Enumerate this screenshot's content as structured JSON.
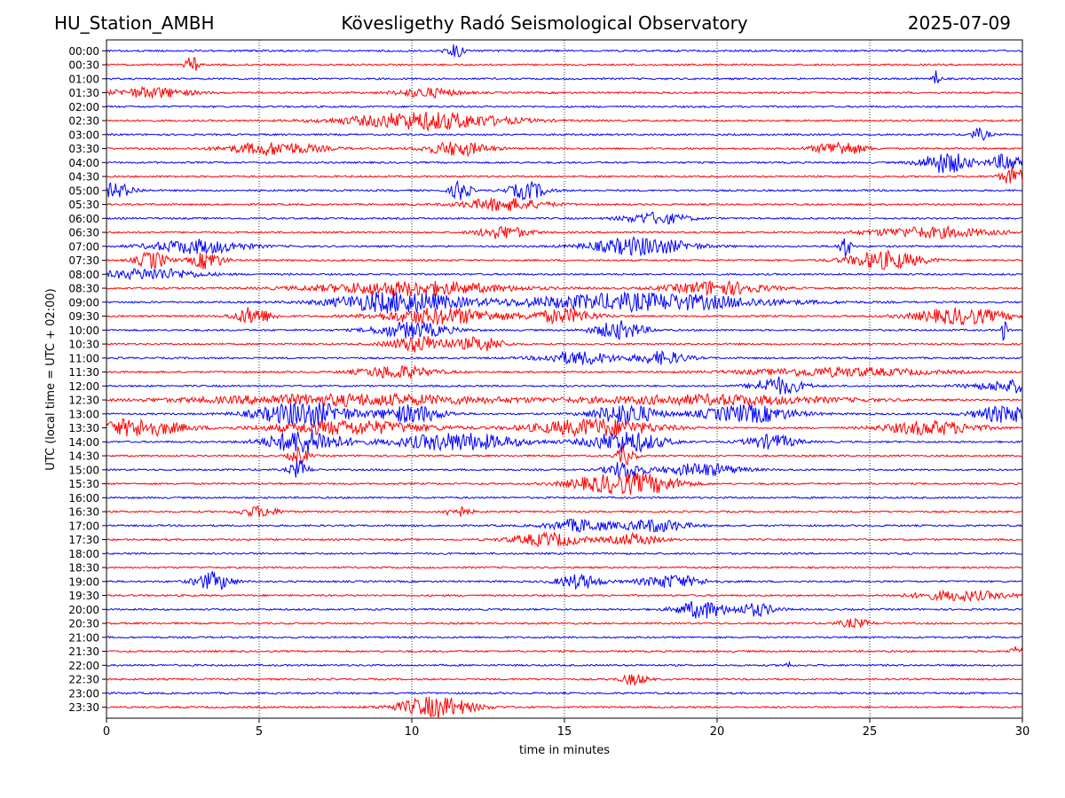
{
  "header": {
    "station": "HU_Station_AMBH",
    "title": "Kövesligethy Radó Seismological Observatory",
    "date": "2025-07-09"
  },
  "chart_data": {
    "type": "line",
    "title": "Kövesligethy Radó Seismological Observatory",
    "xlabel": "time in minutes",
    "ylabel": "UTC (local time = UTC + 02:00)",
    "xlim": [
      0,
      30
    ],
    "xticks": [
      0,
      5,
      10,
      15,
      20,
      25,
      30
    ],
    "grid": "vertical dotted",
    "colors": [
      "#0000ff",
      "#ff0000"
    ],
    "rows": [
      {
        "label": "00:00",
        "bursts": [
          [
            11.4,
            0.3,
            2.0
          ]
        ]
      },
      {
        "label": "00:30",
        "bursts": [
          [
            2.8,
            0.2,
            2.5
          ]
        ]
      },
      {
        "label": "01:00",
        "bursts": [
          [
            27.2,
            0.1,
            3.0
          ]
        ]
      },
      {
        "label": "01:30",
        "bursts": [
          [
            1.5,
            1.2,
            1.5
          ],
          [
            10.5,
            1.0,
            1.3
          ]
        ]
      },
      {
        "label": "02:00",
        "bursts": []
      },
      {
        "label": "02:30",
        "bursts": [
          [
            10.5,
            2.5,
            2.5
          ]
        ]
      },
      {
        "label": "03:00",
        "bursts": [
          [
            28.6,
            0.3,
            1.6
          ]
        ]
      },
      {
        "label": "03:30",
        "bursts": [
          [
            5.5,
            1.5,
            1.8
          ],
          [
            11.5,
            1.0,
            2.0
          ],
          [
            24,
            0.8,
            2.0
          ]
        ]
      },
      {
        "label": "04:00",
        "bursts": [
          [
            27.5,
            0.8,
            3.0
          ],
          [
            29.5,
            0.5,
            2.5
          ]
        ]
      },
      {
        "label": "04:30",
        "bursts": [
          [
            29.7,
            0.4,
            2.5
          ]
        ]
      },
      {
        "label": "05:00",
        "bursts": [
          [
            0.3,
            0.6,
            2.0
          ],
          [
            11.6,
            0.3,
            3.0
          ],
          [
            13.8,
            0.6,
            2.5
          ]
        ]
      },
      {
        "label": "05:30",
        "bursts": [
          [
            13,
            1.3,
            1.8
          ]
        ]
      },
      {
        "label": "06:00",
        "bursts": [
          [
            18,
            1.0,
            1.6
          ]
        ]
      },
      {
        "label": "06:30",
        "bursts": [
          [
            13,
            0.8,
            1.8
          ],
          [
            27,
            2.0,
            1.5
          ]
        ]
      },
      {
        "label": "07:00",
        "bursts": [
          [
            3,
            1.5,
            2.0
          ],
          [
            17.5,
            1.6,
            2.5
          ],
          [
            24.2,
            0.2,
            3.0
          ]
        ]
      },
      {
        "label": "07:30",
        "bursts": [
          [
            1.5,
            0.5,
            2.5
          ],
          [
            3.3,
            0.5,
            2.5
          ],
          [
            25.5,
            1.2,
            2.5
          ]
        ]
      },
      {
        "label": "08:00",
        "bursts": [
          [
            1.5,
            1.5,
            1.6
          ]
        ]
      },
      {
        "label": "08:30",
        "bursts": [
          [
            10,
            3.0,
            2.0
          ],
          [
            20,
            1.5,
            2.0
          ]
        ]
      },
      {
        "label": "09:00",
        "bursts": [
          [
            9.5,
            2.0,
            3.0
          ],
          [
            17.5,
            4.0,
            2.5
          ]
        ]
      },
      {
        "label": "09:30",
        "bursts": [
          [
            4.8,
            0.6,
            2.5
          ],
          [
            11,
            2.0,
            2.3
          ],
          [
            15,
            1.0,
            2.0
          ],
          [
            28,
            1.5,
            2.3
          ]
        ]
      },
      {
        "label": "10:00",
        "bursts": [
          [
            10,
            1.2,
            2.3
          ],
          [
            16.8,
            0.8,
            2.5
          ],
          [
            29.4,
            0.1,
            3.0
          ]
        ]
      },
      {
        "label": "10:30",
        "bursts": [
          [
            10.3,
            1.0,
            2.3
          ],
          [
            12.3,
            0.7,
            2.0
          ]
        ]
      },
      {
        "label": "11:00",
        "bursts": [
          [
            15.5,
            1.2,
            1.8
          ],
          [
            18.2,
            0.8,
            1.8
          ]
        ]
      },
      {
        "label": "11:30",
        "bursts": [
          [
            9.5,
            1.2,
            1.8
          ],
          [
            24,
            3.0,
            1.2
          ]
        ]
      },
      {
        "label": "12:00",
        "bursts": [
          [
            22,
            0.8,
            2.5
          ],
          [
            30,
            1.5,
            1.8
          ]
        ]
      },
      {
        "label": "12:30",
        "bursts": [
          [
            8,
            5.0,
            1.6
          ],
          [
            20,
            4.0,
            1.4
          ]
        ]
      },
      {
        "label": "13:00",
        "bursts": [
          [
            6.5,
            1.5,
            3.5
          ],
          [
            10,
            1.0,
            2.5
          ],
          [
            17,
            1.0,
            3.0
          ],
          [
            21,
            1.5,
            2.5
          ],
          [
            29.5,
            1.0,
            2.5
          ]
        ]
      },
      {
        "label": "13:30",
        "bursts": [
          [
            1,
            1.5,
            2.5
          ],
          [
            8,
            2.5,
            2.0
          ],
          [
            16,
            2.0,
            2.5
          ],
          [
            27,
            1.5,
            2.0
          ]
        ]
      },
      {
        "label": "14:00",
        "bursts": [
          [
            6.5,
            1.2,
            3.5
          ],
          [
            11.5,
            2.0,
            2.5
          ],
          [
            17,
            1.2,
            3.0
          ],
          [
            21.8,
            0.8,
            2.0
          ]
        ]
      },
      {
        "label": "14:30",
        "bursts": [
          [
            6.3,
            0.3,
            2.5
          ],
          [
            17,
            0.3,
            2.5
          ]
        ]
      },
      {
        "label": "15:00",
        "bursts": [
          [
            6.3,
            0.3,
            2.5
          ],
          [
            17,
            0.6,
            2.5
          ],
          [
            19.5,
            1.2,
            1.8
          ]
        ]
      },
      {
        "label": "15:30",
        "bursts": [
          [
            16.5,
            1.3,
            2.5
          ],
          [
            18,
            1.0,
            1.8
          ]
        ]
      },
      {
        "label": "16:00",
        "bursts": []
      },
      {
        "label": "16:30",
        "bursts": [
          [
            5,
            0.6,
            1.5
          ],
          [
            11.5,
            0.4,
            1.5
          ]
        ]
      },
      {
        "label": "17:00",
        "bursts": [
          [
            15.5,
            1.0,
            1.8
          ],
          [
            18,
            1.0,
            1.8
          ]
        ]
      },
      {
        "label": "17:30",
        "bursts": [
          [
            14.5,
            1.2,
            1.8
          ],
          [
            17.3,
            0.8,
            1.6
          ]
        ]
      },
      {
        "label": "18:00",
        "bursts": []
      },
      {
        "label": "18:30",
        "bursts": []
      },
      {
        "label": "19:00",
        "bursts": [
          [
            3.5,
            0.6,
            2.5
          ],
          [
            15.5,
            0.7,
            2.0
          ],
          [
            18.5,
            1.0,
            1.8
          ]
        ]
      },
      {
        "label": "19:30",
        "bursts": [
          [
            28,
            1.5,
            1.4
          ]
        ]
      },
      {
        "label": "20:00",
        "bursts": [
          [
            19.5,
            0.8,
            2.5
          ],
          [
            21.3,
            0.6,
            1.8
          ]
        ]
      },
      {
        "label": "20:30",
        "bursts": [
          [
            24.5,
            0.5,
            1.2
          ]
        ]
      },
      {
        "label": "21:00",
        "bursts": []
      },
      {
        "label": "21:30",
        "bursts": [
          [
            29.8,
            0.2,
            1.2
          ]
        ]
      },
      {
        "label": "22:00",
        "bursts": [
          [
            22.3,
            0.1,
            1.5
          ]
        ]
      },
      {
        "label": "22:30",
        "bursts": [
          [
            17.3,
            0.4,
            1.6
          ]
        ]
      },
      {
        "label": "23:00",
        "bursts": []
      },
      {
        "label": "23:30",
        "bursts": [
          [
            10.8,
            1.2,
            3.0
          ]
        ]
      }
    ]
  }
}
